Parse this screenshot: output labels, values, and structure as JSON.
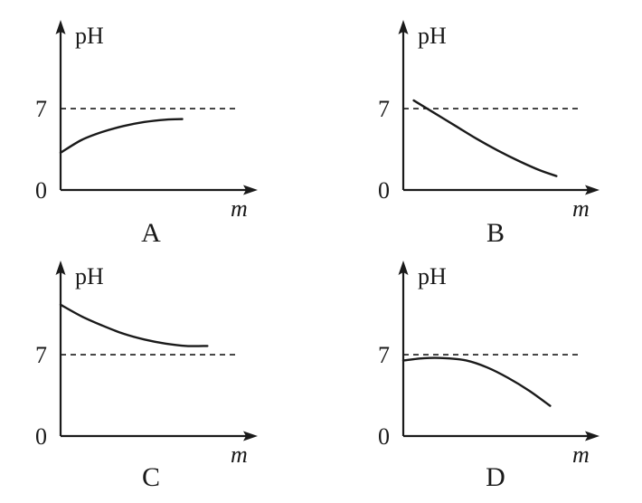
{
  "chart_data": [
    {
      "type": "line",
      "panel_label": "A",
      "ylabel": "pH",
      "xlabel": "m",
      "origin_label": "0",
      "reference_line": {
        "value": 7,
        "label": "7",
        "style": "dashed"
      },
      "ylim": [
        0,
        13
      ],
      "xlim": [
        0,
        10
      ],
      "series": [
        {
          "x": [
            0,
            1,
            2,
            3,
            4,
            5,
            5.8
          ],
          "y": [
            3.2,
            4.3,
            5.0,
            5.5,
            5.85,
            6.05,
            6.1
          ]
        }
      ]
    },
    {
      "type": "line",
      "panel_label": "B",
      "ylabel": "pH",
      "xlabel": "m",
      "origin_label": "0",
      "reference_line": {
        "value": 7,
        "label": "7",
        "style": "dashed"
      },
      "ylim": [
        0,
        13
      ],
      "xlim": [
        0,
        10
      ],
      "series": [
        {
          "x": [
            0.5,
            1.5,
            2.5,
            3.5,
            4.5,
            5.5,
            6.5,
            7.3
          ],
          "y": [
            7.7,
            6.6,
            5.5,
            4.4,
            3.4,
            2.5,
            1.7,
            1.2
          ]
        }
      ]
    },
    {
      "type": "line",
      "panel_label": "C",
      "ylabel": "pH",
      "xlabel": "m",
      "origin_label": "0",
      "reference_line": {
        "value": 7,
        "label": "7",
        "style": "dashed"
      },
      "ylim": [
        0,
        13
      ],
      "xlim": [
        0,
        10
      ],
      "series": [
        {
          "x": [
            0,
            1,
            2,
            3,
            4,
            5,
            6,
            7
          ],
          "y": [
            11.3,
            10.3,
            9.5,
            8.8,
            8.3,
            7.95,
            7.75,
            7.75
          ]
        }
      ]
    },
    {
      "type": "line",
      "panel_label": "D",
      "ylabel": "pH",
      "xlabel": "m",
      "origin_label": "0",
      "reference_line": {
        "value": 7,
        "label": "7",
        "style": "dashed"
      },
      "ylim": [
        0,
        13
      ],
      "xlim": [
        0,
        10
      ],
      "series": [
        {
          "x": [
            0,
            1,
            2,
            3,
            4,
            5,
            6,
            7
          ],
          "y": [
            6.5,
            6.7,
            6.7,
            6.5,
            5.9,
            5.0,
            3.9,
            2.6
          ]
        }
      ]
    }
  ]
}
